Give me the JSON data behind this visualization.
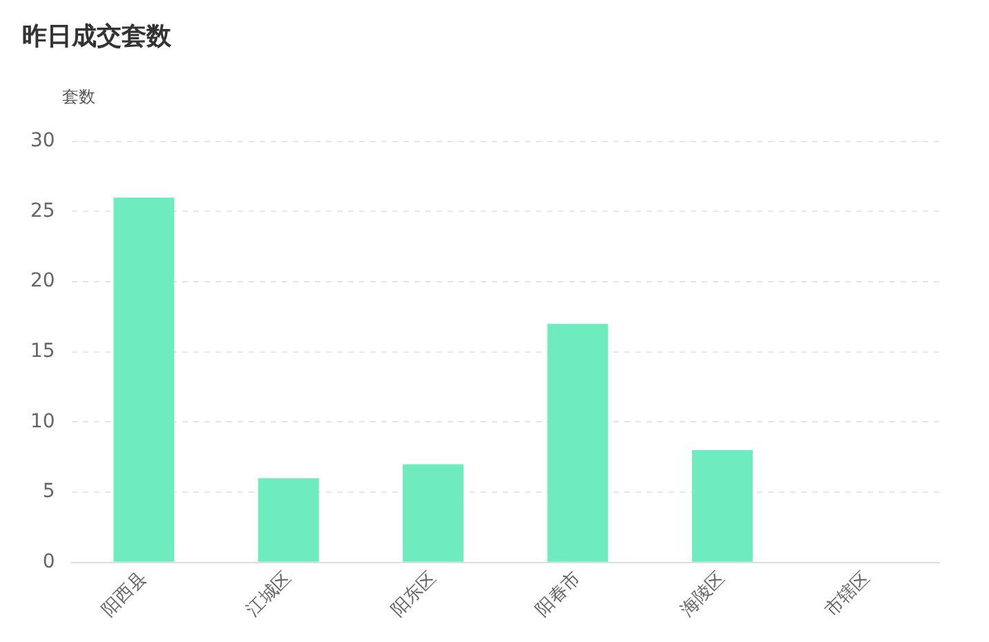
{
  "chart_data": {
    "type": "bar",
    "title": "昨日成交套数",
    "ylabel": "套数",
    "categories": [
      "阳西县",
      "江城区",
      "阳东区",
      "阳春市",
      "海陵区",
      "市辖区"
    ],
    "values": [
      26,
      6,
      7,
      17,
      8,
      0
    ],
    "color": "#6eecbf",
    "ylim": [
      0,
      30
    ],
    "yticks": [
      0,
      5,
      10,
      15,
      20,
      25,
      30
    ],
    "grid": "y"
  }
}
